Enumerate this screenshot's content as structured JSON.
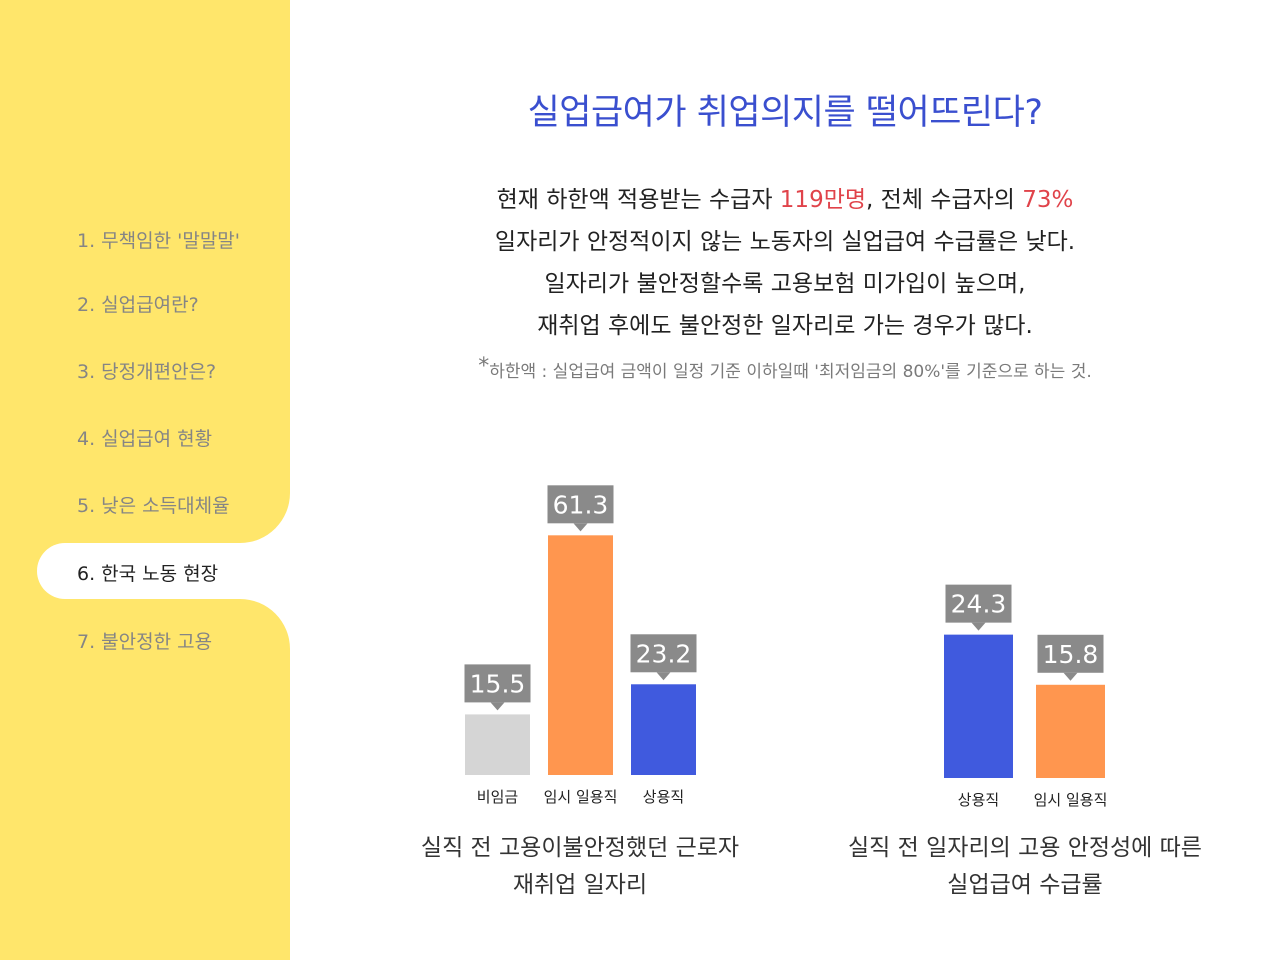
{
  "sidebar": {
    "items": [
      {
        "label": "1. 무책임한 '말말말'"
      },
      {
        "label": "2. 실업급여란?"
      },
      {
        "label": "3. 당정개편안은?"
      },
      {
        "label": "4. 실업급여 현황"
      },
      {
        "label": "5. 낮은 소득대체율"
      },
      {
        "label": "6. 한국 노동 현장"
      },
      {
        "label": "7. 불안정한 고용"
      }
    ],
    "active_index": 5
  },
  "header": {
    "title": "실업급여가 취업의지를 떨어뜨린다?"
  },
  "description": {
    "line1_prefix": "현재 하한액 적용받는 수급자 ",
    "line1_hl1": "119만명",
    "line1_mid": ", 전체 수급자의 ",
    "line1_hl2": "73%",
    "line2": "일자리가 안정적이지 않는 노동자의 실업급여 수급률은 낮다.",
    "line3": "일자리가 불안정할수록 고용보험 미가입이 높으며,",
    "line4": "재취업 후에도 불안정한 일자리로 가는 경우가 많다.",
    "note_star": "*",
    "note": "하한액 : 실업급여 금액이 일정 기준 이하일때 '최저임금의 80%'를 기준으로 하는 것."
  },
  "colors": {
    "title": "#3a4fcf",
    "highlight": "#e0434a",
    "sidebar": "#ffe66b",
    "gray": "#d5d5d5",
    "orange": "#ff964f",
    "blue": "#405ade",
    "label_bg": "#8a8a8a"
  },
  "chart_data": [
    {
      "type": "bar",
      "categories": [
        "비임금",
        "임시 일용직",
        "상용직"
      ],
      "values": [
        15.5,
        61.3,
        23.2
      ],
      "colors": [
        "#d5d5d5",
        "#ff964f",
        "#405ade"
      ],
      "caption_line1": "실직 전 고용이불안정했던 근로자",
      "caption_line2": "재취업 일자리"
    },
    {
      "type": "bar",
      "categories": [
        "상용직",
        "임시 일용직"
      ],
      "values": [
        24.3,
        15.8
      ],
      "colors": [
        "#405ade",
        "#ff964f"
      ],
      "caption_line1": "실직 전 일자리의 고용 안정성에 따른",
      "caption_line2": "실업급여 수급률"
    }
  ]
}
